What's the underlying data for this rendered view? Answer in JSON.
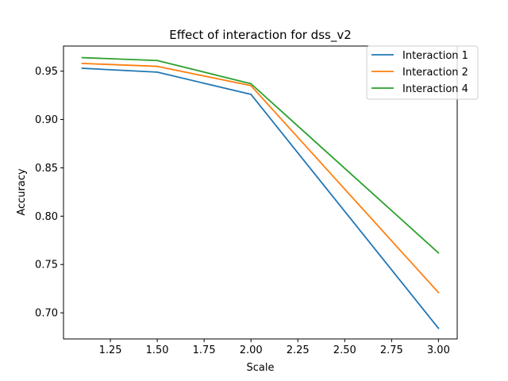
{
  "chart_data": {
    "type": "line",
    "title": "Effect of interaction for dss_v2",
    "xlabel": "Scale",
    "ylabel": "Accuracy",
    "xlim": [
      1.0,
      3.1
    ],
    "ylim": [
      0.673,
      0.976
    ],
    "x_ticks": [
      1.25,
      1.5,
      1.75,
      2.0,
      2.25,
      2.5,
      2.75,
      3.0
    ],
    "x_tick_labels": [
      "1.25",
      "1.50",
      "1.75",
      "2.00",
      "2.25",
      "2.50",
      "2.75",
      "3.00"
    ],
    "y_ticks": [
      0.7,
      0.75,
      0.8,
      0.85,
      0.9,
      0.95
    ],
    "y_tick_labels": [
      "0.70",
      "0.75",
      "0.80",
      "0.85",
      "0.90",
      "0.95"
    ],
    "x": [
      1.1,
      1.5,
      2.0,
      3.0
    ],
    "series": [
      {
        "name": "Interaction 1",
        "color": "#1f77b4",
        "values": [
          0.953,
          0.949,
          0.926,
          0.684
        ]
      },
      {
        "name": "Interaction 2",
        "color": "#ff7f0e",
        "values": [
          0.958,
          0.955,
          0.935,
          0.721
        ]
      },
      {
        "name": "Interaction 4",
        "color": "#2ca02c",
        "values": [
          0.964,
          0.961,
          0.937,
          0.762
        ]
      }
    ],
    "grid": false,
    "legend_position": "top-right"
  }
}
